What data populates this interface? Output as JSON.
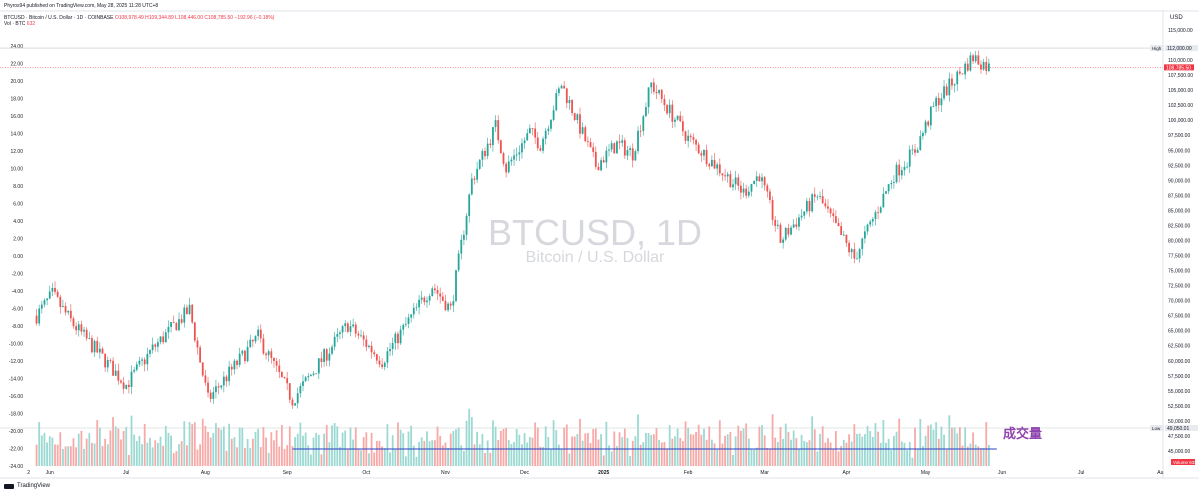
{
  "header": {
    "publisher": "Phyros94 published on TradingView.com, May 28, 2025 11:28 UTC+8",
    "symbol": "BTCUSD · Bitcoin / U.S. Dollar · 1D · COINBASE",
    "ohlc": "O108,978.49  H109,344.89  L108,446.00  C108,785.50  −192.96 (−0.18%)",
    "vol_label": "Vol · BTC",
    "vol_value": "632",
    "vol_text": "Vol21.9  −192.96 (−0.18%)"
  },
  "currency": "USD",
  "watermark": {
    "title": "BTCUSD, 1D",
    "subtitle": "Bitcoin / U.S. Dollar"
  },
  "annotation": "成交量",
  "footer_logo": "TradingView",
  "colors": {
    "up": "#26a69a",
    "down": "#ef5350",
    "vol_up": "#9cd9d2",
    "vol_down": "#f7a9a7",
    "avg_line": "#2741c7"
  },
  "markers": {
    "high_label": "High",
    "high_value": "112,000.00",
    "low_label": "Low",
    "low_value": "49,050.01",
    "last_value": "108,785.50",
    "volume_label": "Volume",
    "volume_value": "632"
  },
  "chart_data": {
    "type": "candlestick",
    "right_axis": {
      "min": 42500,
      "max": 115000,
      "ticks": [
        "115,000.00",
        "110,000.00",
        "107,500.00",
        "105,000.00",
        "102,500.00",
        "100,000.00",
        "97,500.00",
        "95,000.00",
        "92,500.00",
        "90,000.00",
        "87,500.00",
        "85,000.00",
        "82,500.00",
        "80,000.00",
        "77,500.00",
        "75,000.00",
        "72,500.00",
        "70,000.00",
        "67,500.00",
        "65,000.00",
        "62,500.00",
        "60,000.00",
        "57,500.00",
        "55,000.00",
        "52,500.00",
        "50,000.00",
        "47,500.00",
        "45,000.00"
      ]
    },
    "left_axis": {
      "min": -24,
      "max": 24,
      "ticks": [
        "24.00",
        "22.00",
        "20.00",
        "18.00",
        "16.00",
        "14.00",
        "12.00",
        "10.00",
        "8.00",
        "6.00",
        "4.00",
        "2.00",
        "0.00",
        "-2.00",
        "-4.00",
        "-6.00",
        "-8.00",
        "-10.00",
        "-12.00",
        "-14.00",
        "-16.00",
        "-18.00",
        "-20.00",
        "-22.00",
        "-24.00"
      ]
    },
    "x_labels": [
      "2",
      "Jun",
      "Jul",
      "Aug",
      "Sep",
      "Oct",
      "Nov",
      "Dec",
      "2025",
      "Feb",
      "Mar",
      "Apr",
      "May",
      "Jun",
      "Jul",
      "Au"
    ],
    "price_path": [
      [
        "2024-06-01",
        67500
      ],
      [
        "2024-06-07",
        71000
      ],
      [
        "2024-06-15",
        66000
      ],
      [
        "2024-06-24",
        61500
      ],
      [
        "2024-07-05",
        56000
      ],
      [
        "2024-07-15",
        62000
      ],
      [
        "2024-07-29",
        68500
      ],
      [
        "2024-08-05",
        53500
      ],
      [
        "2024-08-24",
        64000
      ],
      [
        "2024-09-06",
        53500
      ],
      [
        "2024-09-27",
        66000
      ],
      [
        "2024-10-10",
        60000
      ],
      [
        "2024-10-29",
        72500
      ],
      [
        "2024-11-05",
        68500
      ],
      [
        "2024-11-13",
        90000
      ],
      [
        "2024-11-22",
        99000
      ],
      [
        "2024-11-26",
        92000
      ],
      [
        "2024-12-05",
        98000
      ],
      [
        "2024-12-09",
        96000
      ],
      [
        "2024-12-17",
        106000
      ],
      [
        "2024-12-30",
        92500
      ],
      [
        "2025-01-07",
        96000
      ],
      [
        "2025-01-13",
        94500
      ],
      [
        "2025-01-20",
        106000
      ],
      [
        "2025-02-03",
        97000
      ],
      [
        "2025-02-24",
        88000
      ],
      [
        "2025-03-02",
        91000
      ],
      [
        "2025-03-10",
        80000
      ],
      [
        "2025-03-24",
        87500
      ],
      [
        "2025-04-07",
        77000
      ],
      [
        "2025-04-22",
        91000
      ],
      [
        "2025-04-30",
        95000
      ],
      [
        "2025-05-08",
        103000
      ],
      [
        "2025-05-22",
        110500
      ],
      [
        "2025-05-28",
        108785.5
      ]
    ],
    "volume_average": 410
  }
}
